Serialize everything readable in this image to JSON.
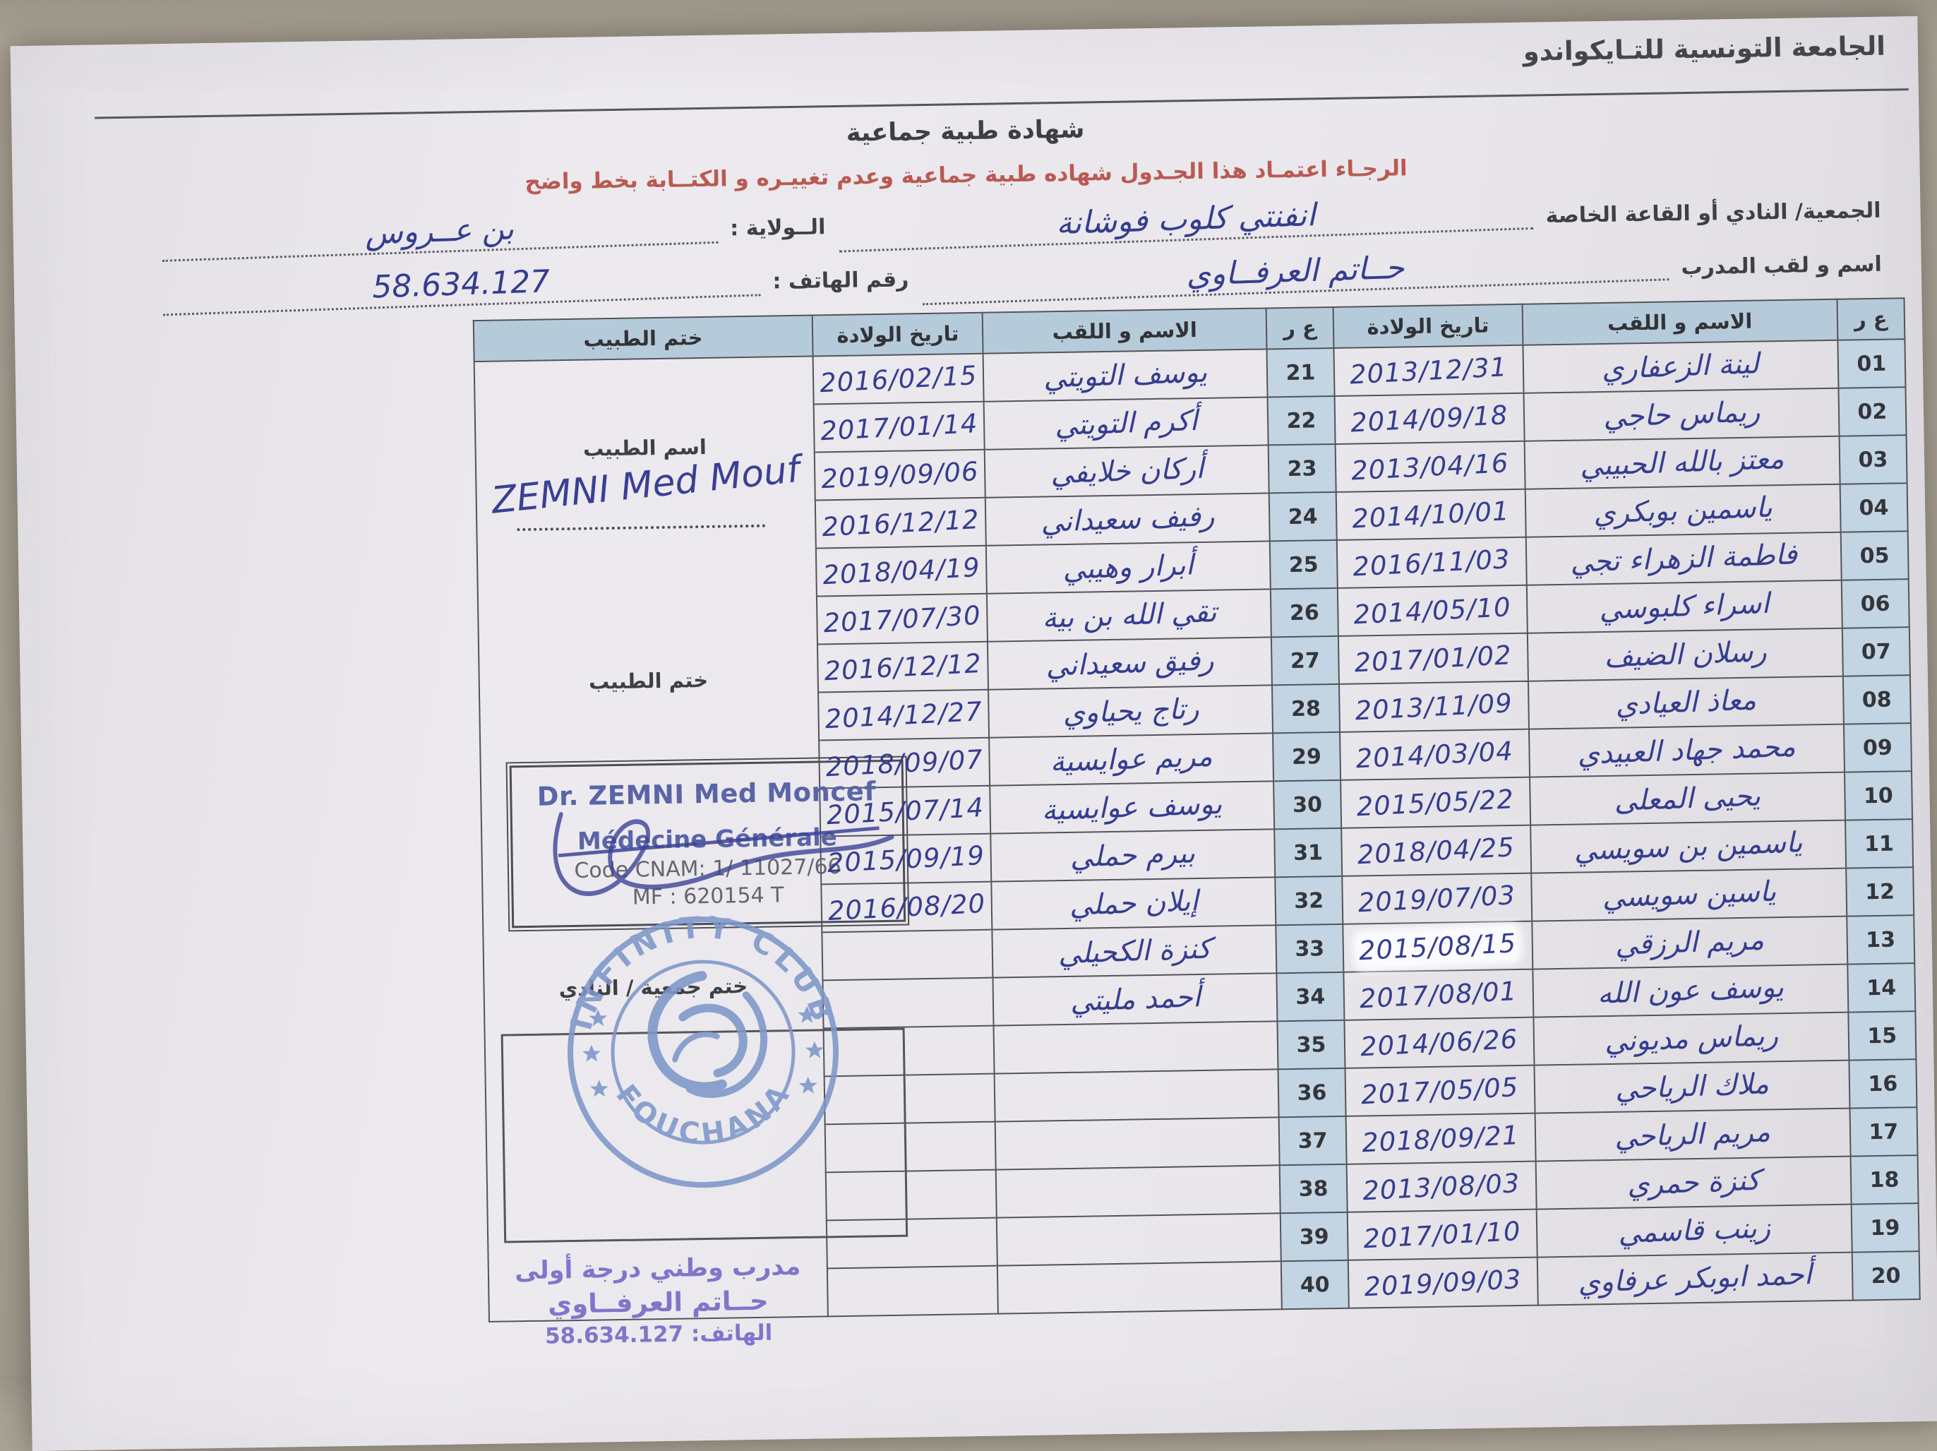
{
  "header": {
    "federation": "الجامعة التونسية للتـايكواندو",
    "title": "شهادة طبية جماعية",
    "instruction": "الرجـاء اعتمـاد هذا الجـدول  شهاده طبية جماعية وعدم تغييـره و الكتــابة بخط واضح"
  },
  "form": {
    "club_label": "الجمعية/ النادي أو القاعة الخاصة",
    "club_value": "انفنتي كلوب فوشانة",
    "state_label": "الــولاية :",
    "state_value": "بن عــروس",
    "coach_label": "اسم و لقب المدرب",
    "coach_value": "حــاتم العرفــاوي",
    "phone_label": "رقم الهاتف :",
    "phone_value": "58.634.127"
  },
  "table": {
    "headers": {
      "num": "ع ر",
      "name": "الاسم و اللقب",
      "dob": "تاريخ الولادة",
      "doctor_stamp": "ختم الطبيب"
    },
    "right_entries": [
      {
        "no": "01",
        "name": "لينة الزعفاري",
        "dob": "2013/12/31"
      },
      {
        "no": "02",
        "name": "ريماس حاجي",
        "dob": "2014/09/18"
      },
      {
        "no": "03",
        "name": "معتز بالله الحبيبي",
        "dob": "2013/04/16"
      },
      {
        "no": "04",
        "name": "ياسمين بوبكري",
        "dob": "2014/10/01"
      },
      {
        "no": "05",
        "name": "فاطمة الزهراء تجي",
        "dob": "2016/11/03"
      },
      {
        "no": "06",
        "name": "اسراء كلبوسي",
        "dob": "2014/05/10"
      },
      {
        "no": "07",
        "name": "رسلان الضيف",
        "dob": "2017/01/02"
      },
      {
        "no": "08",
        "name": "معاذ العيادي",
        "dob": "2013/11/09"
      },
      {
        "no": "09",
        "name": "محمد جهاد العبيدي",
        "dob": "2014/03/04"
      },
      {
        "no": "10",
        "name": "يحيى المعلى",
        "dob": "2015/05/22"
      },
      {
        "no": "11",
        "name": "ياسمين بن سويسي",
        "dob": "2018/04/25"
      },
      {
        "no": "12",
        "name": "ياسين سويسي",
        "dob": "2019/07/03"
      },
      {
        "no": "13",
        "name": "مريم الرزقي",
        "dob": "2015/08/15",
        "corrected": true
      },
      {
        "no": "14",
        "name": "يوسف عون الله",
        "dob": "2017/08/01"
      },
      {
        "no": "15",
        "name": "ريماس مديوني",
        "dob": "2014/06/26"
      },
      {
        "no": "16",
        "name": "ملاك الرياحي",
        "dob": "2017/05/05"
      },
      {
        "no": "17",
        "name": "مريم الرياحي",
        "dob": "2018/09/21"
      },
      {
        "no": "18",
        "name": "كنزة حمري",
        "dob": "2013/08/03"
      },
      {
        "no": "19",
        "name": "زينب قاسمي",
        "dob": "2017/01/10"
      },
      {
        "no": "20",
        "name": "أحمد ابوبكر عرفاوي",
        "dob": "2019/09/03"
      }
    ],
    "left_entries": [
      {
        "no": "21",
        "name": "يوسف التويتي",
        "dob": "2016/02/15"
      },
      {
        "no": "22",
        "name": "أكرم التويتي",
        "dob": "2017/01/14"
      },
      {
        "no": "23",
        "name": "أركان خلايفي",
        "dob": "2019/09/06"
      },
      {
        "no": "24",
        "name": "رفيف سعيداني",
        "dob": "2016/12/12"
      },
      {
        "no": "25",
        "name": "أبرار وهيبي",
        "dob": "2018/04/19"
      },
      {
        "no": "26",
        "name": "تقي الله بن بية",
        "dob": "2017/07/30"
      },
      {
        "no": "27",
        "name": "رفيق سعيداني",
        "dob": "2016/12/12"
      },
      {
        "no": "28",
        "name": "رتاج يحياوي",
        "dob": "2014/12/27"
      },
      {
        "no": "29",
        "name": "مريم عوايسية",
        "dob": "2018/09/07"
      },
      {
        "no": "30",
        "name": "يوسف عوايسية",
        "dob": "2015/07/14"
      },
      {
        "no": "31",
        "name": "بيرم حملي",
        "dob": "2015/09/19"
      },
      {
        "no": "32",
        "name": "إيلان حملي",
        "dob": "2016/08/20"
      },
      {
        "no": "33",
        "name": "كنزة الكحيلي",
        "dob": ""
      },
      {
        "no": "34",
        "name": "أحمد مليتي",
        "dob": ""
      },
      {
        "no": "35",
        "name": "",
        "dob": ""
      },
      {
        "no": "36",
        "name": "",
        "dob": ""
      },
      {
        "no": "37",
        "name": "",
        "dob": ""
      },
      {
        "no": "38",
        "name": "",
        "dob": ""
      },
      {
        "no": "39",
        "name": "",
        "dob": ""
      },
      {
        "no": "40",
        "name": "",
        "dob": ""
      }
    ]
  },
  "stamps": {
    "doctor_name_label": "اسم الطبيب",
    "doctor_signature": "ZEMNI Med Mouf",
    "doctor_stamp_label": "ختم الطبيب",
    "doctor_stamp_box": {
      "line1": "Dr. ZEMNI Med Moncef",
      "line2": "Médecine Générale",
      "line3": "Code CNAM: 1/ 11027/66",
      "line4": "MF : 620154 T"
    },
    "club_stamp_label": "ختم جمعية / النادي",
    "club_seal": {
      "top_text": "INFINITY CLUB",
      "bottom_text": "FOUCHANA"
    },
    "coach_stamp": {
      "line1": "مدرب وطني درجة أولى",
      "line2": "حــاتم العرفــاوي",
      "line3": "الهاتف: 58.634.127"
    }
  },
  "colors": {
    "ink_blue": "#353d90",
    "stamp_purple": "#8274ca",
    "seal_blue": "#7d97c9",
    "instruction_red": "#b95a52",
    "table_header_blue": "#b6cbda"
  }
}
